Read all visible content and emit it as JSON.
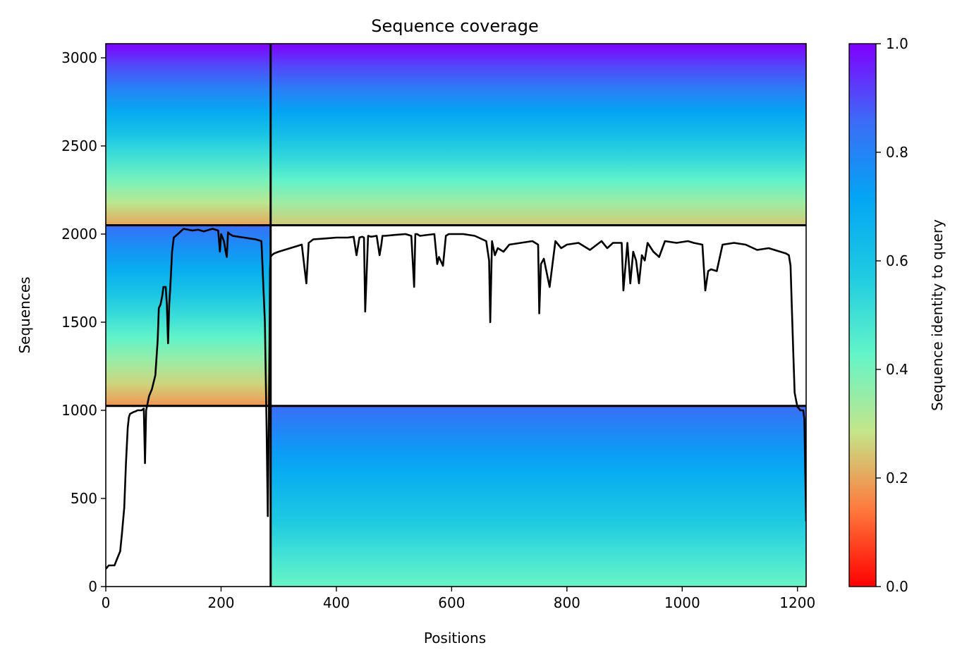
{
  "chart_data": {
    "type": "heatmap",
    "title": "Sequence coverage",
    "xlabel": "Positions",
    "ylabel": "Sequences",
    "xlim": [
      0,
      1215
    ],
    "ylim": [
      0,
      3080
    ],
    "xticks": [
      0,
      200,
      400,
      600,
      800,
      1000,
      1200
    ],
    "yticks": [
      0,
      500,
      1000,
      1500,
      2000,
      2500,
      3000
    ],
    "colorbar": {
      "label": "Sequence identity to query",
      "range": [
        0.0,
        1.0
      ],
      "ticks": [
        "0.0",
        "0.2",
        "0.4",
        "0.6",
        "0.8",
        "1.0"
      ],
      "colormap": "rainbow",
      "stops": [
        "#ff0000",
        "#ff7a3d",
        "#c4e58a",
        "#63f5c9",
        "#1ecbe1",
        "#02a6f4",
        "#3c6cf7",
        "#8000ff"
      ]
    },
    "blocks": [
      {
        "x": [
          0,
          286
        ],
        "y": [
          2050,
          3080
        ],
        "identity_top": 1.0,
        "identity_bottom": 0.2
      },
      {
        "x": [
          286,
          1215
        ],
        "y": [
          2050,
          3080
        ],
        "identity_top": 1.0,
        "identity_bottom": 0.25
      },
      {
        "x": [
          0,
          286
        ],
        "y": [
          1025,
          2050
        ],
        "identity_top": 0.85,
        "identity_bottom": 0.18
      },
      {
        "x": [
          286,
          1215
        ],
        "y": [
          1025,
          2050
        ],
        "identity_top": null,
        "identity_bottom": null
      },
      {
        "x": [
          0,
          286
        ],
        "y": [
          0,
          1025
        ],
        "identity_top": null,
        "identity_bottom": null
      },
      {
        "x": [
          286,
          1215
        ],
        "y": [
          0,
          1025
        ],
        "identity_top": 0.85,
        "identity_bottom": 0.42
      }
    ],
    "dividers": {
      "x": [
        286
      ],
      "y": [
        1025,
        2050
      ]
    },
    "coverage_line": {
      "name": "",
      "x": [
        0,
        5,
        15,
        20,
        25,
        28,
        32,
        35,
        38,
        40,
        42,
        45,
        48,
        52,
        55,
        58,
        62,
        66,
        68,
        70,
        72,
        75,
        80,
        86,
        90,
        92,
        95,
        98,
        100,
        104,
        106,
        108,
        110,
        112,
        115,
        118,
        125,
        135,
        150,
        160,
        170,
        185,
        195,
        198,
        200,
        205,
        208,
        210,
        212,
        215,
        220,
        230,
        240,
        250,
        260,
        270,
        276,
        279,
        281,
        283,
        285,
        286,
        288,
        292,
        300,
        320,
        340,
        345,
        348,
        352,
        360,
        380,
        400,
        420,
        430,
        435,
        440,
        445,
        448,
        450,
        455,
        460,
        470,
        475,
        478,
        480,
        485,
        500,
        520,
        530,
        535,
        537,
        540,
        545,
        570,
        575,
        578,
        585,
        590,
        595,
        605,
        620,
        640,
        660,
        665,
        667,
        670,
        675,
        680,
        690,
        700,
        720,
        740,
        750,
        752,
        755,
        760,
        770,
        780,
        790,
        800,
        820,
        840,
        860,
        870,
        880,
        890,
        895,
        898,
        905,
        910,
        915,
        920,
        925,
        930,
        935,
        940,
        950,
        960,
        970,
        990,
        1010,
        1020,
        1035,
        1040,
        1045,
        1050,
        1060,
        1070,
        1090,
        1110,
        1130,
        1150,
        1170,
        1180,
        1185,
        1188,
        1190,
        1193,
        1195,
        1198,
        1200,
        1205,
        1210,
        1212,
        1215
      ],
      "y": [
        100,
        120,
        120,
        160,
        200,
        300,
        450,
        700,
        900,
        960,
        980,
        985,
        990,
        995,
        1000,
        1000,
        1000,
        1010,
        700,
        1000,
        1030,
        1080,
        1120,
        1200,
        1400,
        1580,
        1600,
        1650,
        1700,
        1700,
        1600,
        1380,
        1600,
        1700,
        1900,
        1980,
        2000,
        2030,
        2020,
        2025,
        2015,
        2030,
        2020,
        1900,
        2000,
        1960,
        1900,
        1870,
        2010,
        2000,
        1990,
        1985,
        1980,
        1975,
        1970,
        1960,
        1500,
        900,
        400,
        1000,
        1800,
        1870,
        1880,
        1890,
        1900,
        1920,
        1940,
        1800,
        1720,
        1950,
        1970,
        1975,
        1980,
        1980,
        1985,
        1880,
        1980,
        1985,
        1980,
        1560,
        1990,
        1985,
        1990,
        1880,
        1940,
        1990,
        1990,
        1995,
        2000,
        1990,
        1700,
        2000,
        2000,
        1990,
        2000,
        1830,
        1870,
        1820,
        1990,
        2000,
        2000,
        2000,
        1990,
        1960,
        1850,
        1500,
        1960,
        1880,
        1920,
        1900,
        1940,
        1950,
        1960,
        1940,
        1550,
        1830,
        1860,
        1700,
        1960,
        1920,
        1940,
        1950,
        1910,
        1960,
        1920,
        1950,
        1950,
        1950,
        1680,
        1950,
        1720,
        1900,
        1850,
        1720,
        1880,
        1850,
        1950,
        1900,
        1870,
        1960,
        1950,
        1960,
        1950,
        1940,
        1680,
        1790,
        1800,
        1790,
        1940,
        1950,
        1940,
        1910,
        1920,
        1900,
        1890,
        1880,
        1820,
        1600,
        1300,
        1100,
        1050,
        1020,
        1000,
        1000,
        950,
        370
      ]
    }
  }
}
